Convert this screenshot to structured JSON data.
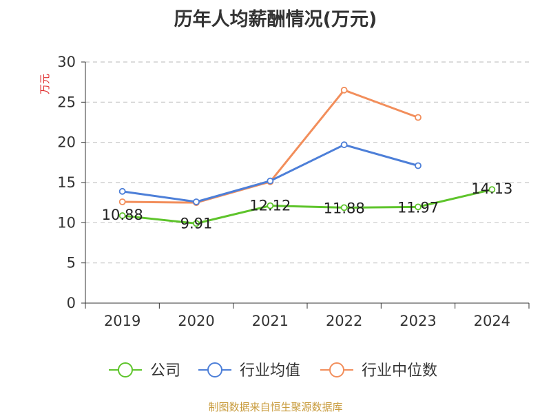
{
  "chart_data": {
    "type": "line",
    "title": "历年人均薪酬情况(万元)",
    "ylabel": "万元",
    "ylim": [
      0,
      30
    ],
    "yticks": [
      0,
      5,
      10,
      15,
      20,
      25,
      30
    ],
    "categories": [
      "2019",
      "2020",
      "2021",
      "2022",
      "2023",
      "2024"
    ],
    "grid": true,
    "legend_position": "bottom",
    "series": [
      {
        "name": "公司",
        "color": "#5ec42b",
        "values": [
          10.88,
          9.91,
          12.12,
          11.88,
          11.97,
          14.13
        ],
        "labels": [
          "10.88",
          "9.91",
          "12.12",
          "11.88",
          "11.97",
          "14.13"
        ]
      },
      {
        "name": "行业均值",
        "color": "#4d7fd8",
        "values": [
          13.9,
          12.6,
          15.2,
          19.7,
          17.1,
          null
        ]
      },
      {
        "name": "行业中位数",
        "color": "#f28e5b",
        "values": [
          12.6,
          12.5,
          15.1,
          26.5,
          23.1,
          null
        ]
      }
    ]
  },
  "ylabel_color": "#e03131",
  "source": "制图数据来自恒生聚源数据库"
}
